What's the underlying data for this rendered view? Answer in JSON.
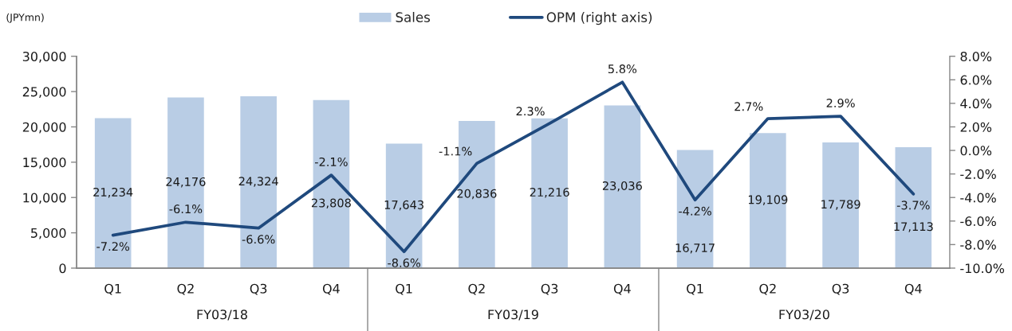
{
  "chart_data": {
    "type": "bar",
    "ylabel": "(JPYmn)",
    "legend": "top",
    "grid": false,
    "categories": [
      "Q1",
      "Q2",
      "Q3",
      "Q4",
      "Q1",
      "Q2",
      "Q3",
      "Q4",
      "Q1",
      "Q2",
      "Q3",
      "Q4"
    ],
    "annotations": [
      "FY03/18",
      "FY03/19",
      "FY03/20"
    ],
    "series": [
      {
        "name": "Sales",
        "color": "#b9cde5",
        "values": [
          21234,
          24176,
          24324,
          23808,
          17643,
          20836,
          21216,
          23036,
          16717,
          19109,
          17789,
          17113
        ],
        "value_labels": [
          "21,234",
          "24,176",
          "24,324",
          "23,808",
          "17,643",
          "20,836",
          "21,216",
          "23,036",
          "16,717",
          "19,109",
          "17,789",
          "17,113"
        ]
      },
      {
        "name": "OPM (right axis)",
        "type": "line",
        "axis": "y2",
        "color": "#1f497d",
        "marker": "none",
        "line_style": "solid",
        "values": [
          -7.2,
          -6.1,
          -6.6,
          -2.1,
          -8.6,
          -1.1,
          2.3,
          5.8,
          -4.2,
          2.7,
          2.9,
          -3.7
        ],
        "value_labels": [
          "-7.2%",
          "-6.1%",
          "-6.6%",
          "-2.1%",
          "-8.6%",
          "-1.1%",
          "2.3%",
          "5.8%",
          "-4.2%",
          "2.7%",
          "2.9%",
          "-3.7%"
        ]
      }
    ],
    "ylim": [
      0,
      30000
    ],
    "yticks": [
      0,
      {
        "value": 5000,
        "label": "5,000"
      },
      {
        "value": 10000,
        "label": "10,000"
      },
      {
        "value": 15000,
        "label": "15,000"
      },
      {
        "value": 20000,
        "label": "20,000"
      },
      {
        "value": 25000,
        "label": "25,000"
      },
      {
        "value": 30000,
        "label": "30,000"
      }
    ],
    "y2lim": [
      -10,
      8
    ],
    "y2ticks": [
      {
        "value": -10,
        "label": "-10.0%"
      },
      {
        "value": -8,
        "label": "-8.0%"
      },
      {
        "value": -6,
        "label": "-6.0%"
      },
      {
        "value": -4,
        "label": "-4.0%"
      },
      {
        "value": -2,
        "label": "-2.0%"
      },
      {
        "value": 0,
        "label": "0.0%"
      },
      {
        "value": 2,
        "label": "2.0%"
      },
      {
        "value": 4,
        "label": "4.0%"
      },
      {
        "value": 6,
        "label": "6.0%"
      },
      {
        "value": 8,
        "label": "8.0%"
      }
    ]
  }
}
